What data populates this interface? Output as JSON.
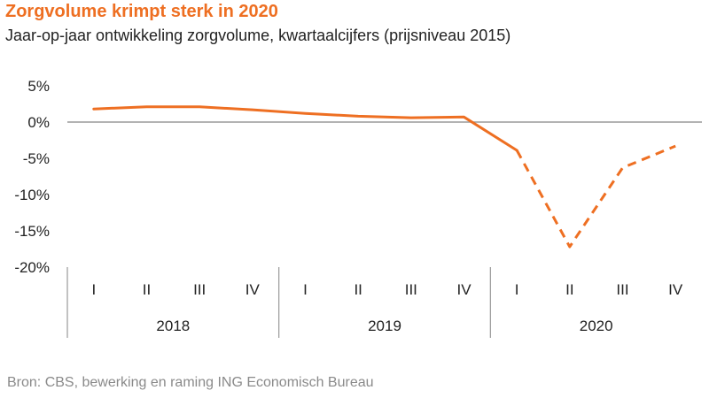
{
  "title": "Zorgvolume krimpt sterk in 2020",
  "subtitle": "Jaar-op-jaar ontwikkeling zorgvolume,  kwartaalcijfers (prijsniveau 2015)",
  "source": "Bron: CBS, bewerking en raming ING Economisch Bureau",
  "colors": {
    "accent": "#ee6f22",
    "zero_line": "#9a9a9a",
    "axis": "#9a9a9a",
    "text": "#222222",
    "source_text": "#8a8a8a"
  },
  "chart_data": {
    "type": "line",
    "title": "Zorgvolume krimpt sterk in 2020",
    "subtitle": "Jaar-op-jaar ontwikkeling zorgvolume,  kwartaalcijfers (prijsniveau 2015)",
    "xlabel": "",
    "ylabel": "",
    "ylim": [
      -20,
      5
    ],
    "yticks": [
      5,
      0,
      -5,
      -10,
      -15,
      -20
    ],
    "ytick_labels": [
      "5%",
      "0%",
      "-5%",
      "-10%",
      "-15%",
      "-20%"
    ],
    "grid": false,
    "legend": "none",
    "x_groups": [
      {
        "label": "2018",
        "quarters": [
          "I",
          "II",
          "III",
          "IV"
        ]
      },
      {
        "label": "2019",
        "quarters": [
          "I",
          "II",
          "III",
          "IV"
        ]
      },
      {
        "label": "2020",
        "quarters": [
          "I",
          "II",
          "III",
          "IV"
        ]
      }
    ],
    "categories": [
      "2018 I",
      "2018 II",
      "2018 III",
      "2018 IV",
      "2019 I",
      "2019 II",
      "2019 III",
      "2019 IV",
      "2020 I",
      "2020 II",
      "2020 III",
      "2020 IV"
    ],
    "series": [
      {
        "values": [
          1.8,
          2.1,
          2.1,
          1.7,
          1.2,
          0.8,
          0.6,
          0.7,
          -3.9,
          -17.2,
          -6.3,
          -3.3
        ],
        "color": "#ee6f22",
        "solid_through_index": 8,
        "dashed_from_index": 8
      }
    ]
  }
}
